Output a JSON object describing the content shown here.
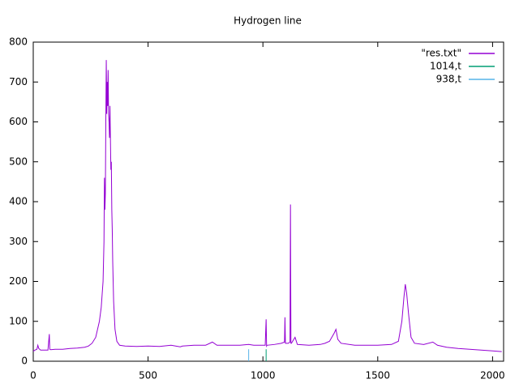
{
  "chart_data": {
    "type": "line",
    "title": "Hydrogen line",
    "xlim": [
      0,
      2048
    ],
    "ylim": [
      0,
      800
    ],
    "xticks": [
      0,
      500,
      1000,
      1500,
      2000
    ],
    "yticks": [
      0,
      100,
      200,
      300,
      400,
      500,
      600,
      700,
      800
    ],
    "legend": "top-right",
    "series": [
      {
        "name": "\"res.txt\"",
        "color": "#9400d3",
        "x": [
          0,
          8,
          16,
          20,
          24,
          32,
          48,
          64,
          70,
          72,
          76,
          96,
          128,
          160,
          192,
          224,
          240,
          256,
          272,
          288,
          296,
          304,
          308,
          310,
          312,
          314,
          316,
          318,
          320,
          322,
          324,
          326,
          328,
          330,
          332,
          334,
          338,
          340,
          342,
          344,
          346,
          350,
          356,
          364,
          376,
          400,
          450,
          500,
          550,
          600,
          640,
          650,
          700,
          750,
          780,
          800,
          850,
          900,
          938,
          960,
          1000,
          1010,
          1014,
          1016,
          1018,
          1050,
          1080,
          1094,
          1096,
          1098,
          1100,
          1110,
          1118,
          1120,
          1122,
          1124,
          1140,
          1150,
          1200,
          1250,
          1270,
          1290,
          1310,
          1318,
          1326,
          1340,
          1400,
          1450,
          1500,
          1560,
          1590,
          1605,
          1614,
          1620,
          1626,
          1634,
          1645,
          1660,
          1700,
          1740,
          1760,
          1800,
          1850,
          1900,
          1950,
          2000,
          2040
        ],
        "values": [
          25,
          28,
          30,
          40,
          32,
          28,
          28,
          28,
          68,
          30,
          29,
          30,
          30,
          32,
          33,
          35,
          38,
          45,
          60,
          100,
          135,
          200,
          300,
          460,
          380,
          420,
          600,
          755,
          620,
          700,
          640,
          730,
          620,
          600,
          560,
          640,
          480,
          500,
          380,
          330,
          250,
          150,
          80,
          50,
          40,
          38,
          37,
          38,
          37,
          40,
          36,
          38,
          40,
          40,
          48,
          40,
          40,
          40,
          42,
          40,
          40,
          40,
          105,
          38,
          40,
          42,
          45,
          48,
          110,
          45,
          45,
          45,
          48,
          393,
          45,
          45,
          60,
          42,
          40,
          42,
          45,
          50,
          70,
          80,
          55,
          45,
          40,
          40,
          40,
          42,
          50,
          100,
          160,
          193,
          170,
          120,
          60,
          45,
          42,
          48,
          40,
          35,
          32,
          30,
          28,
          26,
          24
        ]
      },
      {
        "name": "1014,t",
        "color": "#009e73",
        "x": [
          1014,
          1014
        ],
        "values": [
          0,
          30
        ]
      },
      {
        "name": "938,t",
        "color": "#56b4e9",
        "x": [
          938,
          938
        ],
        "values": [
          0,
          30
        ]
      }
    ]
  }
}
